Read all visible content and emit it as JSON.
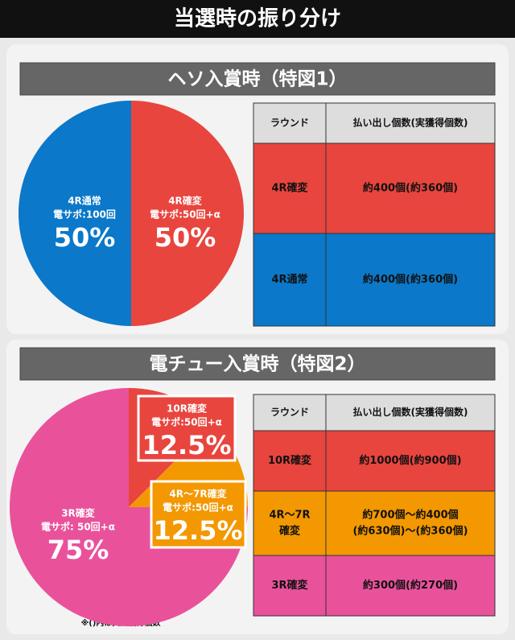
{
  "title": "当選時の振り分け",
  "chart_data": [
    {
      "type": "pie",
      "title": "ヘソ入賞時（特図1）",
      "categories": [
        "4R確変",
        "4R通常"
      ],
      "sublabels": [
        "電サポ:50回+α",
        "電サポ:100回"
      ],
      "values": [
        50,
        50
      ],
      "value_labels": [
        "50%",
        "50%"
      ],
      "colors": [
        "#e8453e",
        "#0b78c9"
      ]
    },
    {
      "type": "pie",
      "title": "電チュー入賞時（特図2）",
      "categories": [
        "10R確変",
        "4R～7R確変",
        "3R確変"
      ],
      "sublabels": [
        "電サポ:50回+α",
        "電サポ:50回+α",
        "電サポ: 50回+α"
      ],
      "values": [
        12.5,
        12.5,
        75
      ],
      "value_labels": [
        "12.5%",
        "12.5%",
        "75%"
      ],
      "colors": [
        "#e8453e",
        "#f39800",
        "#e9529b"
      ]
    }
  ],
  "tables": [
    {
      "header": [
        "ラウンド",
        "払い出し個数(実獲得個数)"
      ],
      "rows": [
        [
          [
            "4R確変"
          ],
          [
            "約400個(約360個)"
          ]
        ],
        [
          [
            "4R通常"
          ],
          [
            "約400個(約360個)"
          ]
        ]
      ]
    },
    {
      "header": [
        "ラウンド",
        "払い出し個数(実獲得個数)"
      ],
      "rows": [
        [
          [
            "10R確変"
          ],
          [
            "約1000個(約900個)"
          ]
        ],
        [
          [
            "4R～7R",
            "確変"
          ],
          [
            "約700個～約400個",
            "(約630個)～(約360個)"
          ]
        ],
        [
          [
            "3R確変"
          ],
          [
            "約300個(約270個)"
          ]
        ]
      ]
    }
  ],
  "note": "※()内は実質獲得個数"
}
